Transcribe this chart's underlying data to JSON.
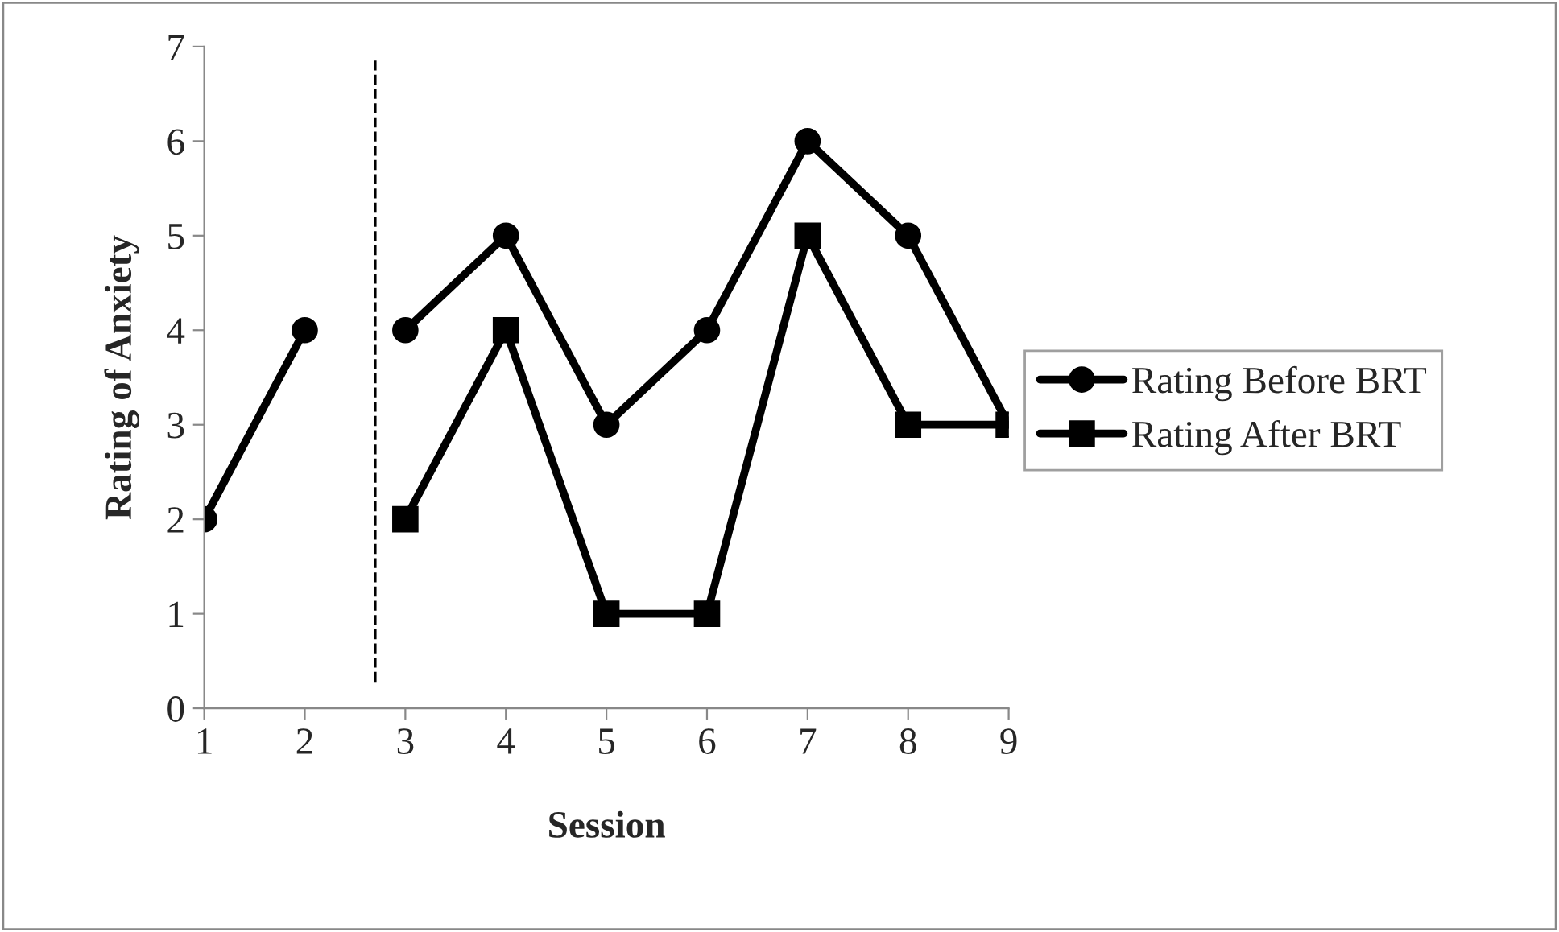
{
  "chart_data": {
    "type": "line",
    "xlabel": "Session",
    "ylabel": "Rating of Anxiety",
    "xlim": [
      1,
      9
    ],
    "xticks": [
      1,
      2,
      3,
      4,
      5,
      6,
      7,
      8,
      9
    ],
    "ylim": [
      0,
      7
    ],
    "yticks": [
      0,
      1,
      2,
      3,
      4,
      5,
      6,
      7
    ],
    "series": [
      {
        "color": "#000000",
        "marker": "circle",
        "x": [
          1,
          2
        ],
        "values": [
          2,
          4
        ]
      },
      {
        "name": "Rating Before BRT",
        "color": "#000000",
        "marker": "circle",
        "x": [
          3,
          4,
          5,
          6,
          7,
          8,
          9
        ],
        "values": [
          4,
          5,
          3,
          4,
          6,
          5,
          3
        ]
      },
      {
        "name": "Rating After BRT",
        "color": "#000000",
        "marker": "square",
        "x": [
          3,
          4,
          5,
          6,
          7,
          8,
          9
        ],
        "values": [
          2,
          4,
          1,
          1,
          5,
          3,
          3
        ]
      }
    ],
    "ref_lines": [
      {
        "axis": "x",
        "value": 2.7,
        "color": "#000000",
        "line_style": "dashed"
      }
    ],
    "grid": false,
    "legend": "right"
  }
}
